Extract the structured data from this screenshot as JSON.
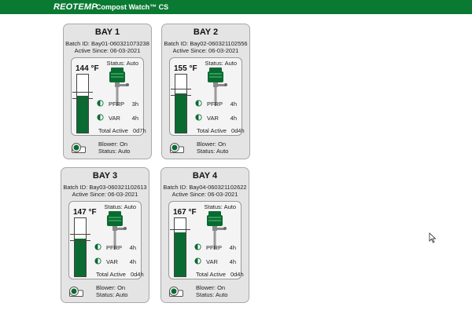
{
  "header": {
    "brand": "REOTEMP",
    "title": "Compost Watch™ CS",
    "bg_color": "#0a7a33"
  },
  "colors": {
    "fill": "#0a6b32",
    "card_bg": "#e4e4e4",
    "panel_bg": "#f4f4f4"
  },
  "bays": [
    {
      "name": "BAY 1",
      "batch": "Batch ID: Bay01-060321073238",
      "active_since": "Active Since: 06-03-2021",
      "status": "Status: Auto",
      "temp": "144 °F",
      "level_pct": 0.63,
      "pfrp_label": "PFRP",
      "pfrp_value": "3h",
      "var_label": "VAR",
      "var_value": "4h",
      "total_label": "Total Active",
      "total_value": "0d7h",
      "blower": "Blower: On",
      "blower_status": "Status: Auto",
      "pfrp_icon": "half-circle-icon",
      "var_icon": "half-circle-icon"
    },
    {
      "name": "BAY 2",
      "batch": "Batch ID: Bay02-060321102556",
      "active_since": "Active Since: 06-03-2021",
      "status": "Status: Auto",
      "temp": "155 °F",
      "level_pct": 0.68,
      "pfrp_label": "PFRP",
      "pfrp_value": "4h",
      "var_label": "VAR",
      "var_value": "4h",
      "total_label": "Total Active",
      "total_value": "0d4h",
      "blower": "Blower: On",
      "blower_status": "Status: Auto",
      "pfrp_icon": "half-circle-icon",
      "var_icon": "half-circle-icon"
    },
    {
      "name": "BAY 3",
      "batch": "Batch ID: Bay03-060321102613",
      "active_since": "Active Since: 06-03-2021",
      "status": "Status: Auto",
      "temp": "147 °F",
      "level_pct": 0.65,
      "pfrp_label": "PFRP",
      "pfrp_value": "4h",
      "var_label": "VAR",
      "var_value": "4h",
      "total_label": "Total Active",
      "total_value": "0d4h",
      "blower": "Blower: On",
      "blower_status": "Status: Auto",
      "pfrp_icon": "half-circle-icon",
      "var_icon": "half-circle-icon"
    },
    {
      "name": "BAY 4",
      "batch": "Batch ID: Bay04-060321102622",
      "active_since": "Active Since: 06-03-2021",
      "status": "Status: Auto",
      "temp": "167 °F",
      "level_pct": 0.76,
      "pfrp_label": "PFRP",
      "pfrp_value": "4h",
      "var_label": "VAR",
      "var_value": "4h",
      "total_label": "Total Active",
      "total_value": "0d4h",
      "blower": "Blower: On",
      "blower_status": "Status: Auto",
      "pfrp_icon": "half-circle-icon",
      "var_icon": "half-circle-icon"
    }
  ]
}
